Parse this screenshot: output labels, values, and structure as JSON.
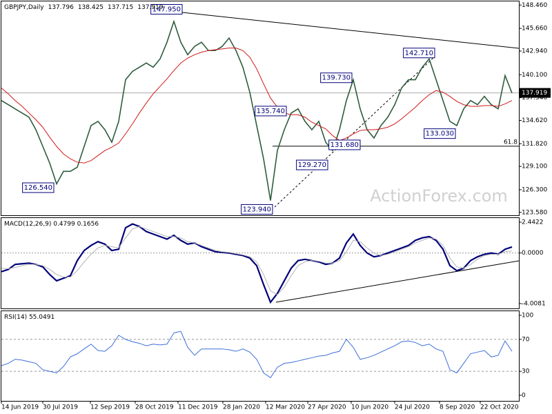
{
  "chart_data": [
    {
      "type": "ohlc-line",
      "title": "GBPJPY,Daily",
      "header_values": [
        137.796,
        138.425,
        137.715,
        137.919
      ],
      "last_price": 137.919,
      "watermark": "ActionForex.com",
      "ylim": [
        123.23,
        148.9
      ],
      "yticks": [
        {
          "value": 148.46,
          "label": "148.460"
        },
        {
          "value": 145.66,
          "label": "145.660"
        },
        {
          "value": 142.94,
          "label": "142.940"
        },
        {
          "value": 140.1,
          "label": "140.100"
        },
        {
          "value": 137.34,
          "label": "137.340"
        },
        {
          "value": 134.62,
          "label": "134.620"
        },
        {
          "value": 131.82,
          "label": "131.820"
        },
        {
          "value": 129.1,
          "label": "129.100"
        },
        {
          "value": 126.3,
          "label": "126.300"
        },
        {
          "value": 123.58,
          "label": "123.580"
        }
      ],
      "levels": [
        {
          "label": "61.8",
          "value": 131.52
        }
      ],
      "series": [
        {
          "name": "Price",
          "color": "#2d5c3c",
          "values": [
            137.0,
            136.5,
            136.0,
            135.5,
            135.0,
            133.5,
            131.5,
            129.5,
            127.0,
            128.5,
            128.5,
            129.0,
            131.5,
            134.0,
            134.5,
            133.5,
            132.0,
            134.5,
            139.5,
            140.5,
            141.0,
            141.5,
            141.0,
            142.0,
            144.0,
            146.5,
            144.0,
            142.5,
            143.5,
            144.0,
            143.0,
            143.0,
            143.5,
            144.5,
            143.0,
            141.0,
            138.0,
            134.0,
            130.0,
            125.0,
            131.0,
            133.5,
            135.5,
            136.0,
            134.5,
            133.5,
            134.5,
            132.0,
            131.0,
            133.5,
            137.0,
            139.5,
            136.0,
            133.5,
            132.5,
            134.0,
            135.0,
            136.5,
            138.5,
            139.5,
            139.5,
            141.0,
            142.0,
            139.5,
            137.0,
            134.5,
            134.0,
            136.0,
            137.0,
            136.5,
            137.5,
            136.5,
            136.0,
            140.0,
            137.9
          ]
        },
        {
          "name": "SMA",
          "color": "#d01818",
          "values": [
            138.5,
            137.8,
            137.0,
            136.3,
            135.5,
            134.7,
            133.8,
            132.6,
            131.5,
            130.6,
            130.0,
            129.6,
            129.5,
            129.8,
            130.4,
            131.0,
            131.4,
            131.9,
            133.0,
            134.2,
            135.5,
            136.7,
            137.8,
            138.7,
            139.6,
            140.6,
            141.5,
            142.1,
            142.5,
            142.8,
            143.0,
            143.1,
            143.2,
            143.3,
            143.3,
            143.0,
            142.2,
            140.8,
            139.0,
            137.3,
            136.2,
            135.5,
            135.3,
            135.3,
            135.0,
            134.4,
            134.0,
            133.6,
            132.8,
            132.2,
            132.5,
            133.0,
            133.4,
            133.5,
            133.5,
            133.6,
            133.8,
            134.2,
            134.8,
            135.5,
            136.2,
            137.0,
            137.7,
            138.2,
            138.0,
            137.5,
            136.9,
            136.5,
            136.3,
            136.3,
            136.4,
            136.4,
            136.3,
            136.6,
            137.0
          ]
        }
      ],
      "annotations": [
        {
          "label": "147.950",
          "value": 147.95,
          "x": 26.2
        },
        {
          "label": "126.540",
          "value": 126.54,
          "x": 7.6
        },
        {
          "label": "123.940",
          "value": 123.94,
          "x": 39.3
        },
        {
          "label": "135.740",
          "value": 135.74,
          "x": 41.3
        },
        {
          "label": "139.730",
          "value": 139.73,
          "x": 50.8
        },
        {
          "label": "129.270",
          "value": 129.27,
          "x": 47.3
        },
        {
          "label": "131.680",
          "value": 131.68,
          "x": 52.0
        },
        {
          "label": "142.710",
          "value": 142.71,
          "x": 62.8
        },
        {
          "label": "133.030",
          "value": 133.03,
          "x": 65.8
        }
      ]
    },
    {
      "type": "line",
      "title": "MACD(12,26,9) 0.4799 0.1656",
      "ylim": [
        -4.39,
        2.77
      ],
      "yticks": [
        2.4422,
        {
          "value": 0,
          "label": "0.0000"
        },
        -4.0081
      ],
      "series": [
        {
          "name": "MACD",
          "color": "#00007a",
          "width": 2.2,
          "values": [
            -1.48,
            -1.3,
            -0.9,
            -0.85,
            -0.8,
            -0.9,
            -1.1,
            -1.7,
            -2.2,
            -2.0,
            -1.8,
            -0.6,
            0.2,
            0.6,
            0.9,
            0.7,
            0.2,
            0.3,
            2.0,
            2.3,
            2.1,
            1.7,
            1.5,
            1.3,
            1.1,
            1.4,
            1.0,
            0.7,
            0.8,
            0.5,
            0.3,
            0.1,
            0.05,
            0.0,
            -0.1,
            -0.2,
            -0.4,
            -1.0,
            -2.5,
            -3.9,
            -3.2,
            -2.2,
            -1.2,
            -0.6,
            -0.5,
            -0.6,
            -0.7,
            -0.9,
            -0.8,
            -0.4,
            0.8,
            1.5,
            0.6,
            0.0,
            -0.3,
            -0.2,
            0.0,
            0.2,
            0.4,
            0.6,
            1.0,
            1.2,
            1.3,
            1.0,
            0.3,
            -1.0,
            -1.4,
            -1.2,
            -0.6,
            -0.3,
            -0.1,
            0.0,
            -0.1,
            0.3,
            0.4799
          ]
        },
        {
          "name": "Signal",
          "color": "#b4b4b4",
          "width": 1,
          "values": [
            -1.2,
            -1.25,
            -1.15,
            -1.0,
            -0.9,
            -0.9,
            -1.0,
            -1.3,
            -1.7,
            -1.9,
            -1.9,
            -1.4,
            -0.7,
            -0.1,
            0.4,
            0.6,
            0.5,
            0.4,
            1.2,
            1.9,
            2.1,
            1.9,
            1.7,
            1.5,
            1.3,
            1.3,
            1.2,
            0.9,
            0.8,
            0.6,
            0.4,
            0.2,
            0.1,
            0.05,
            -0.05,
            -0.15,
            -0.3,
            -0.7,
            -1.7,
            -3.0,
            -3.3,
            -2.7,
            -1.8,
            -1.0,
            -0.7,
            -0.6,
            -0.65,
            -0.8,
            -0.8,
            -0.6,
            0.1,
            1.0,
            0.9,
            0.4,
            0.0,
            -0.2,
            -0.1,
            0.1,
            0.3,
            0.5,
            0.8,
            1.0,
            1.2,
            1.1,
            0.6,
            -0.4,
            -1.1,
            -1.2,
            -0.9,
            -0.5,
            -0.2,
            -0.1,
            -0.1,
            0.1,
            0.1656
          ]
        }
      ]
    },
    {
      "type": "line",
      "title": "RSI(14) 55.0491",
      "ylim": [
        -7,
        105.2
      ],
      "yticks": [
        100,
        70,
        30,
        0
      ],
      "dashed_levels": [
        70,
        30
      ],
      "series": [
        {
          "name": "RSI",
          "color": "#3c6ed8",
          "width": 1,
          "values": [
            37,
            40,
            45,
            44,
            42,
            40,
            32,
            30,
            28,
            36,
            48,
            52,
            58,
            64,
            56,
            55,
            62,
            75,
            70,
            67,
            65,
            62,
            64,
            63,
            64,
            78,
            80,
            60,
            50,
            58,
            58,
            58,
            58,
            57,
            55,
            58,
            54,
            45,
            28,
            22,
            35,
            40,
            41,
            43,
            45,
            47,
            49,
            50,
            53,
            55,
            70,
            60,
            45,
            47,
            50,
            54,
            58,
            62,
            67,
            68,
            66,
            62,
            64,
            58,
            55,
            32,
            28,
            40,
            52,
            54,
            56,
            48,
            50,
            68,
            55.0491
          ]
        }
      ],
      "xticks": [
        {
          "value": 0,
          "label": "14 Jun 2019"
        },
        {
          "value": 6,
          "label": "30 Jul 2019"
        },
        {
          "value": 12.9,
          "label": "12 Sep 2019"
        },
        {
          "value": 19.4,
          "label": "28 Oct 2019"
        },
        {
          "value": 25.6,
          "label": "11 Dec 2019"
        },
        {
          "value": 32.1,
          "label": "28 Jan 2020"
        },
        {
          "value": 38.3,
          "label": "12 Mar 2020"
        },
        {
          "value": 44.4,
          "label": "27 Apr 2020"
        },
        {
          "value": 50.7,
          "label": "10 Jun 2020"
        },
        {
          "value": 57,
          "label": "24 Jul 2020"
        },
        {
          "value": 63.5,
          "label": "8 Sep 2020"
        },
        {
          "value": 69.4,
          "label": "22 Oct 2020"
        }
      ]
    }
  ]
}
